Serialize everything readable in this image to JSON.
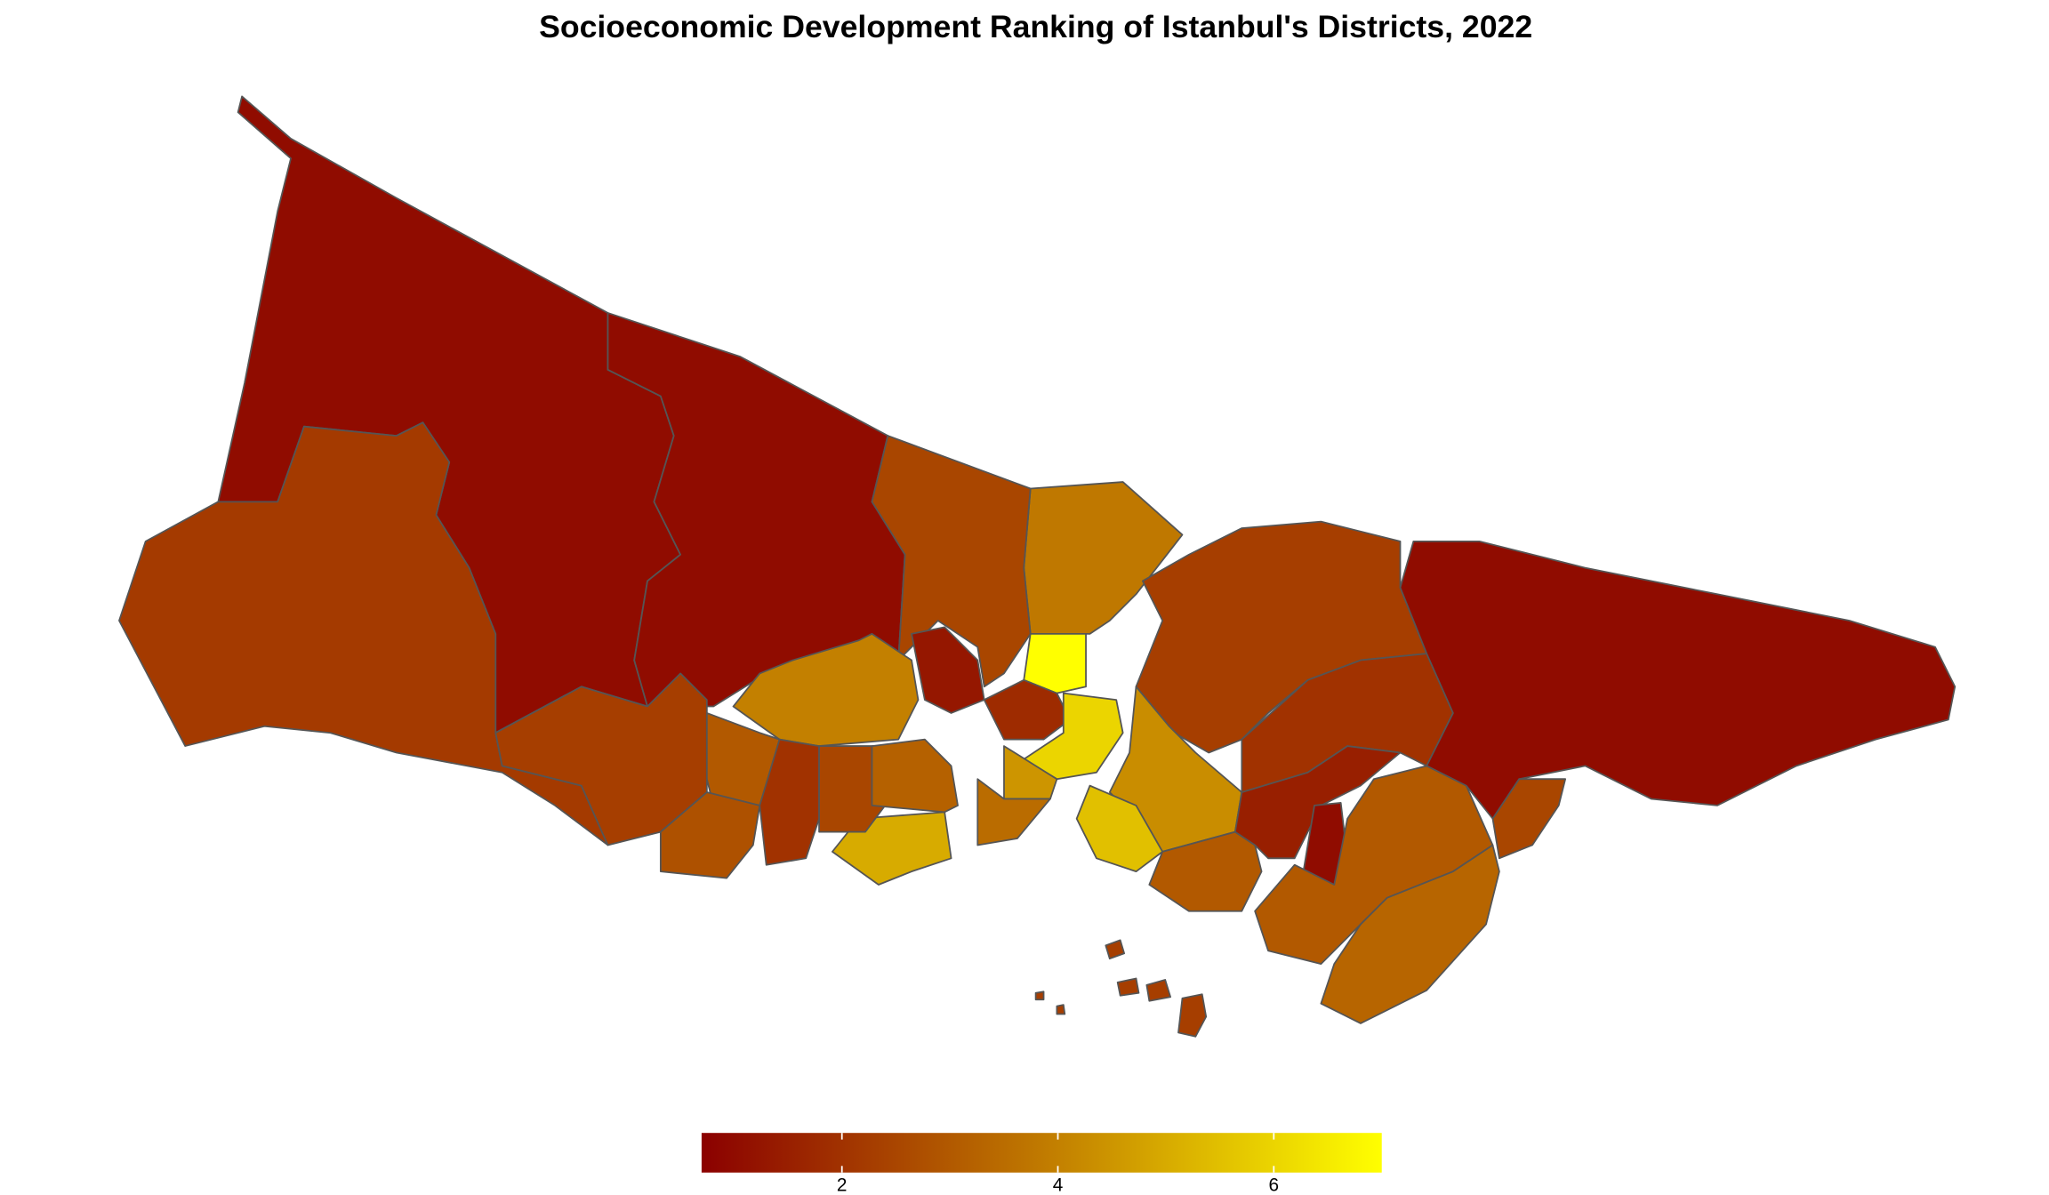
{
  "chart_data": {
    "type": "choropleth",
    "title": "Socioeconomic Development Ranking of Istanbul's Districts, 2022",
    "values": [
      1,
      2.2,
      1,
      2.3,
      3.8,
      2.5,
      1.3,
      4,
      7,
      1.8,
      6,
      4.5,
      5,
      3,
      2.8,
      2,
      2.5,
      3.5,
      2.3,
      4.3,
      5.5,
      2,
      3,
      1.5,
      1,
      3,
      3.3,
      1,
      2.5,
      2.3,
      3.2
    ],
    "colors": [
      "#8b0000",
      "#c07a00",
      "#ffff00"
    ],
    "limits": [
      0.7,
      7
    ],
    "ticks": [
      2,
      4,
      6
    ]
  }
}
